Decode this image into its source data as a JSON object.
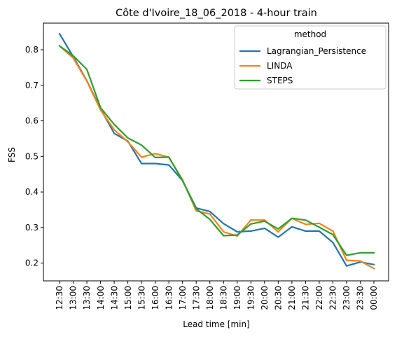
{
  "chart_data": {
    "type": "line",
    "title": "Côte d'Ivoire_18_06_2018 - 4-hour train",
    "xlabel": "Lead time [min]",
    "ylabel": "FSS",
    "x": [
      "12:30",
      "13:00",
      "13:30",
      "14:00",
      "14:30",
      "15:00",
      "15:30",
      "16:00",
      "16:30",
      "17:00",
      "17:30",
      "18:00",
      "18:30",
      "19:00",
      "19:30",
      "20:00",
      "20:30",
      "21:00",
      "21:30",
      "22:00",
      "22:30",
      "23:00",
      "23:30",
      "00:00"
    ],
    "y_ticks": [
      0.2,
      0.3,
      0.4,
      0.5,
      0.6,
      0.7,
      0.8
    ],
    "ylim": [
      0.15,
      0.875
    ],
    "grid": false,
    "legend": {
      "title": "method",
      "placement": "top-right"
    },
    "series": [
      {
        "name": "Lagrangian_Persistence",
        "color": "#1f77b4",
        "values": [
          0.845,
          0.781,
          0.713,
          0.634,
          0.565,
          0.543,
          0.48,
          0.48,
          0.476,
          0.432,
          0.355,
          0.345,
          0.311,
          0.288,
          0.29,
          0.298,
          0.273,
          0.302,
          0.29,
          0.29,
          0.258,
          0.192,
          0.203,
          0.196
        ]
      },
      {
        "name": "LINDA",
        "color": "#ff7f0e",
        "values": [
          0.811,
          0.777,
          0.712,
          0.631,
          0.575,
          0.541,
          0.498,
          0.508,
          0.498,
          0.434,
          0.347,
          0.338,
          0.288,
          0.276,
          0.321,
          0.321,
          0.288,
          0.326,
          0.309,
          0.312,
          0.29,
          0.208,
          0.206,
          0.185
        ]
      },
      {
        "name": "STEPS",
        "color": "#2ca02c",
        "values": [
          0.811,
          0.783,
          0.745,
          0.637,
          0.59,
          0.552,
          0.532,
          0.497,
          0.498,
          0.432,
          0.353,
          0.323,
          0.277,
          0.279,
          0.31,
          0.318,
          0.296,
          0.326,
          0.321,
          0.301,
          0.28,
          0.222,
          0.229,
          0.229
        ]
      }
    ]
  }
}
